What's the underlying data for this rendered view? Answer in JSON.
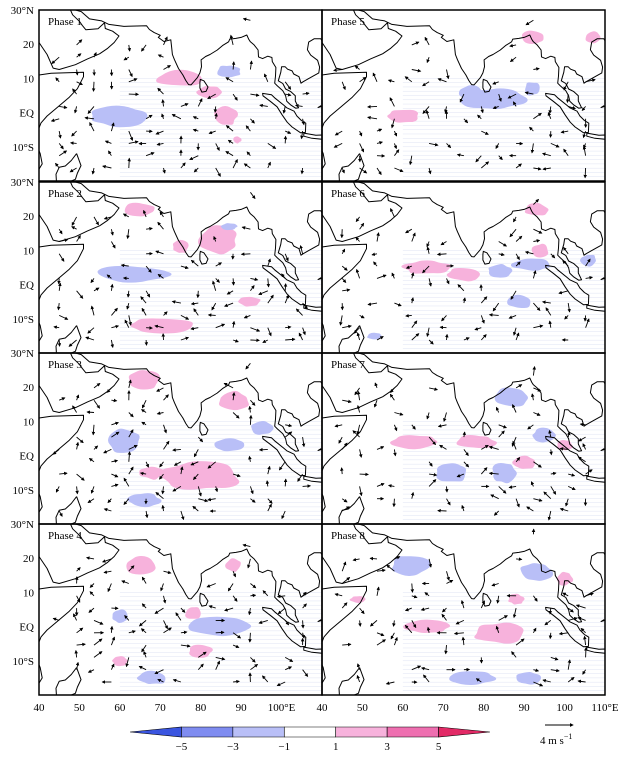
{
  "chart_data": {
    "type": "heatmap",
    "description_kind": "eight-phase composite map of anomalies (shaded) and wind vectors (arrows) over the Indian Ocean",
    "lon_range": [
      40,
      110
    ],
    "lat_range": [
      -20,
      30
    ],
    "y_tick_labels": [
      "30°N",
      "20",
      "10",
      "EQ",
      "10°S"
    ],
    "y_tick_values": [
      30,
      20,
      10,
      0,
      -10
    ],
    "x_tick_labels_left": [
      "40",
      "50",
      "60",
      "70",
      "80",
      "90",
      "100°E"
    ],
    "x_tick_labels_right": [
      "40",
      "50",
      "60",
      "70",
      "80",
      "90",
      "100",
      "110°E"
    ],
    "x_tick_values_left": [
      40,
      50,
      60,
      70,
      80,
      90,
      100
    ],
    "x_tick_values_right": [
      40,
      50,
      60,
      70,
      80,
      90,
      100,
      110
    ],
    "colorbar": {
      "ticks": [
        "−5",
        "−3",
        "−1",
        "1",
        "3",
        "5"
      ],
      "colors": [
        "#3a55e0",
        "#7f8cf0",
        "#b9bff7",
        "#ffffff",
        "#f7b2dc",
        "#ee6fb0",
        "#e22a66"
      ]
    },
    "reference_vector": {
      "label": "4  m  s",
      "superscript": "−1"
    },
    "panels": [
      {
        "name": "Phase 1",
        "col": 0,
        "row": 0,
        "pos": [
          [
            75,
            10,
            6,
            2.5
          ],
          [
            82,
            6,
            3,
            2
          ],
          [
            60,
            -1,
            4,
            2
          ],
          [
            86,
            -1,
            3,
            3
          ],
          [
            89,
            -8,
            1,
            1
          ]
        ],
        "neg": [
          [
            60,
            -1,
            7,
            3
          ],
          [
            87,
            12,
            3,
            2
          ]
        ]
      },
      {
        "name": "Phase 2",
        "col": 0,
        "row": 1,
        "pos": [
          [
            65,
            22,
            4,
            2
          ],
          [
            84,
            13,
            5,
            4
          ],
          [
            75,
            11,
            2,
            2
          ],
          [
            92,
            -5,
            3,
            1.5
          ],
          [
            70,
            -12,
            8,
            2.5
          ]
        ],
        "neg": [
          [
            63,
            3,
            9,
            2.5
          ],
          [
            87,
            17,
            2,
            1
          ]
        ]
      },
      {
        "name": "Phase 3",
        "col": 0,
        "row": 2,
        "pos": [
          [
            66,
            22,
            4,
            3
          ],
          [
            88,
            16,
            4,
            3
          ],
          [
            80,
            -6,
            10,
            4
          ],
          [
            68,
            -5,
            3,
            2
          ]
        ],
        "neg": [
          [
            61,
            4,
            4,
            4
          ],
          [
            87,
            3,
            4,
            2
          ],
          [
            95,
            8,
            3,
            2
          ],
          [
            66,
            -13,
            4,
            2
          ]
        ]
      },
      {
        "name": "Phase 4",
        "col": 0,
        "row": 3,
        "pos": [
          [
            65,
            18,
            4,
            2.5
          ],
          [
            88,
            18,
            2,
            2
          ],
          [
            78,
            4,
            2,
            2
          ],
          [
            80,
            -7,
            3,
            2
          ],
          [
            60,
            -10,
            2,
            1.5
          ]
        ],
        "neg": [
          [
            84,
            0,
            8,
            3
          ],
          [
            60,
            3,
            2,
            2
          ],
          [
            68,
            -15,
            4,
            2
          ]
        ]
      },
      {
        "name": "Phase 5",
        "col": 1,
        "row": 0,
        "pos": [
          [
            92,
            22,
            3,
            2
          ],
          [
            107,
            22,
            2,
            2
          ],
          [
            60,
            -1,
            4,
            2
          ]
        ],
        "neg": [
          [
            82,
            4,
            8,
            3
          ],
          [
            77,
            6,
            3,
            2
          ],
          [
            92,
            7,
            2,
            2
          ]
        ]
      },
      {
        "name": "Phase 6",
        "col": 1,
        "row": 1,
        "pos": [
          [
            66,
            5,
            6,
            2
          ],
          [
            75,
            3,
            4,
            2
          ],
          [
            93,
            22,
            3,
            2
          ],
          [
            94,
            10,
            2,
            2
          ]
        ],
        "neg": [
          [
            92,
            6,
            5,
            2
          ],
          [
            84,
            4,
            3,
            2
          ],
          [
            89,
            -5,
            3,
            2
          ],
          [
            106,
            7,
            2,
            2
          ],
          [
            53,
            -15,
            2,
            1
          ]
        ]
      },
      {
        "name": "Phase 7",
        "col": 1,
        "row": 2,
        "pos": [
          [
            63,
            4,
            6,
            2
          ],
          [
            78,
            4,
            5,
            2
          ],
          [
            90,
            -2,
            3,
            2
          ],
          [
            100,
            3,
            2,
            1.5
          ]
        ],
        "neg": [
          [
            87,
            17,
            4,
            3
          ],
          [
            72,
            -5,
            4,
            3
          ],
          [
            85,
            -5,
            3,
            3
          ],
          [
            95,
            6,
            3,
            2
          ]
        ]
      },
      {
        "name": "Phase 8",
        "col": 1,
        "row": 3,
        "pos": [
          [
            66,
            0,
            6,
            2
          ],
          [
            84,
            -2,
            7,
            3
          ],
          [
            88,
            8,
            2,
            1.5
          ],
          [
            100,
            14,
            2,
            2
          ],
          [
            49,
            8,
            2,
            1
          ]
        ],
        "neg": [
          [
            62,
            18,
            5,
            3
          ],
          [
            93,
            16,
            4,
            3
          ],
          [
            77,
            -15,
            6,
            2
          ],
          [
            91,
            -15,
            3,
            2
          ]
        ]
      }
    ]
  }
}
